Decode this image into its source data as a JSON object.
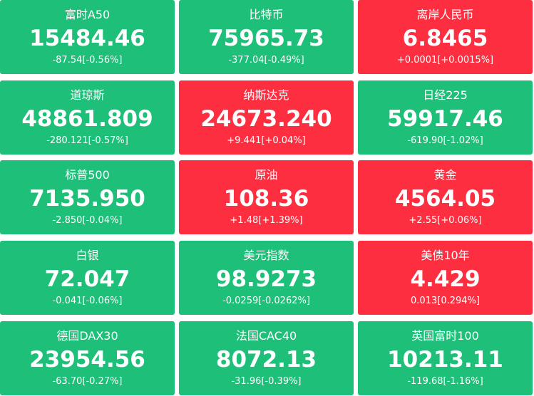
{
  "tiles": [
    {
      "name": "富时A50",
      "price": "15484.46",
      "change": "-87.54[-0.56%]",
      "color": "#1dbf79"
    },
    {
      "name": "比特币",
      "price": "75965.73",
      "change": "-377.04[-0.49%]",
      "color": "#1dbf79"
    },
    {
      "name": "离岸人民币",
      "price": "6.8465",
      "change": "+0.0001[+0.0015%]",
      "color": "#fc2e3f"
    },
    {
      "name": "道琼斯",
      "price": "48861.809",
      "change": "-280.121[-0.57%]",
      "color": "#1dbf79"
    },
    {
      "name": "纳斯达克",
      "price": "24673.240",
      "change": "+9.441[+0.04%]",
      "color": "#fc2e3f"
    },
    {
      "name": "日经225",
      "price": "59917.46",
      "change": "-619.90[-1.02%]",
      "color": "#1dbf79"
    },
    {
      "name": "标普500",
      "price": "7135.950",
      "change": "-2.850[-0.04%]",
      "color": "#1dbf79"
    },
    {
      "name": "原油",
      "price": "108.36",
      "change": "+1.48[+1.39%]",
      "color": "#fc2e3f"
    },
    {
      "name": "黄金",
      "price": "4564.05",
      "change": "+2.55[+0.06%]",
      "color": "#fc2e3f"
    },
    {
      "name": "白银",
      "price": "72.047",
      "change": "-0.041[-0.06%]",
      "color": "#1dbf79"
    },
    {
      "name": "美元指数",
      "price": "98.9273",
      "change": "-0.0259[-0.0262%]",
      "color": "#1dbf79"
    },
    {
      "name": "美债10年",
      "price": "4.429",
      "change": "0.013[0.294%]",
      "color": "#fc2e3f"
    },
    {
      "name": "德国DAX30",
      "price": "23954.56",
      "change": "-63.70[-0.27%]",
      "color": "#1dbf79"
    },
    {
      "name": "法国CAC40",
      "price": "8072.13",
      "change": "-31.96[-0.39%]",
      "color": "#1dbf79"
    },
    {
      "name": "英国富时100",
      "price": "10213.11",
      "change": "-119.68[-1.16%]",
      "color": "#1dbf79"
    }
  ]
}
